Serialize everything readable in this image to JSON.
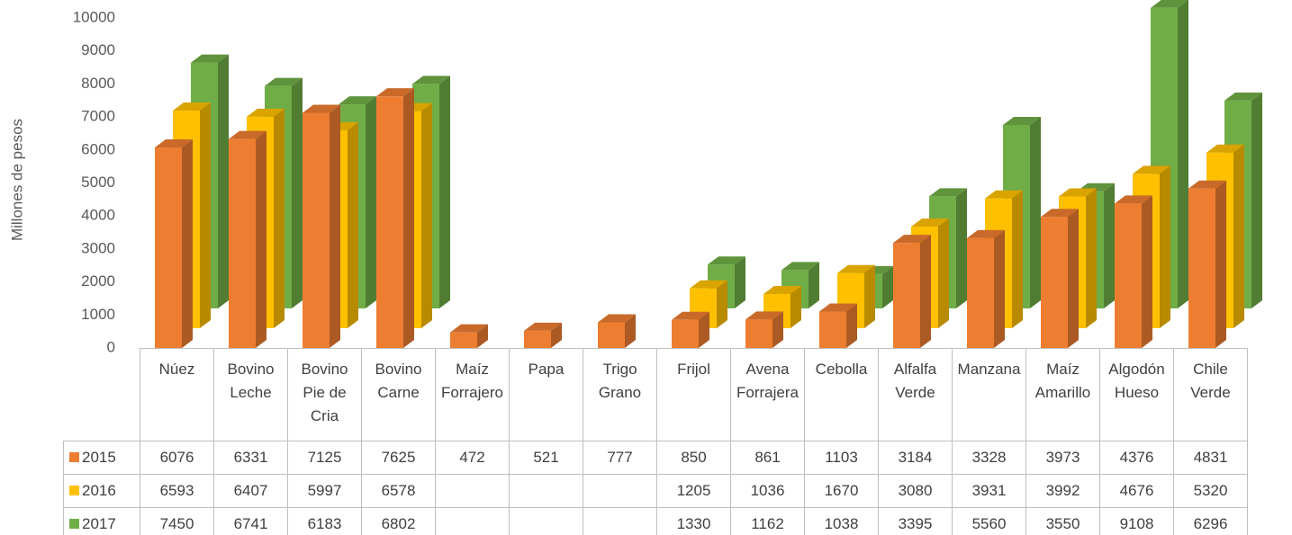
{
  "chart_data": {
    "type": "bar3d",
    "y_label": "Millones de pesos",
    "categories": [
      "Núez",
      "Bovino Leche",
      "Bovino Pie de Cria",
      "Bovino Carne",
      "Maíz Forrajero",
      "Papa",
      "Trigo Grano",
      "Frijol",
      "Avena Forrajera",
      "Cebolla",
      "Alfalfa Verde",
      "Manzana",
      "Maíz Amarillo",
      "Algodón Hueso",
      "Chile Verde"
    ],
    "series": [
      {
        "name": "2015",
        "color": "#ed7d31",
        "values": [
          6076,
          6331,
          7125,
          7625,
          472,
          521,
          777,
          850,
          861,
          1103,
          3184,
          3328,
          3973,
          4376,
          4831
        ]
      },
      {
        "name": "2016",
        "color": "#ffc000",
        "values": [
          6593,
          6407,
          5997,
          6578,
          null,
          null,
          null,
          1205,
          1036,
          1670,
          3080,
          3931,
          3992,
          4676,
          5320
        ]
      },
      {
        "name": "2017",
        "color": "#70ad47",
        "values": [
          7450,
          6741,
          6183,
          6802,
          null,
          null,
          null,
          1330,
          1162,
          1038,
          3395,
          5560,
          3550,
          9108,
          6296
        ]
      }
    ],
    "ylim": [
      0,
      10000
    ],
    "yticks": [
      0,
      1000,
      2000,
      3000,
      4000,
      5000,
      6000,
      7000,
      8000,
      9000,
      10000
    ],
    "grid": false,
    "data_table": true
  }
}
